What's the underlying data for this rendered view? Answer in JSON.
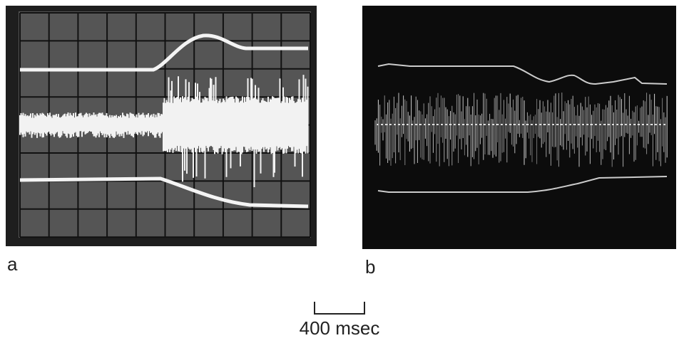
{
  "panels": [
    {
      "label": "a"
    },
    {
      "label": "b"
    }
  ],
  "scale_bar": {
    "label": "400 msec"
  }
}
